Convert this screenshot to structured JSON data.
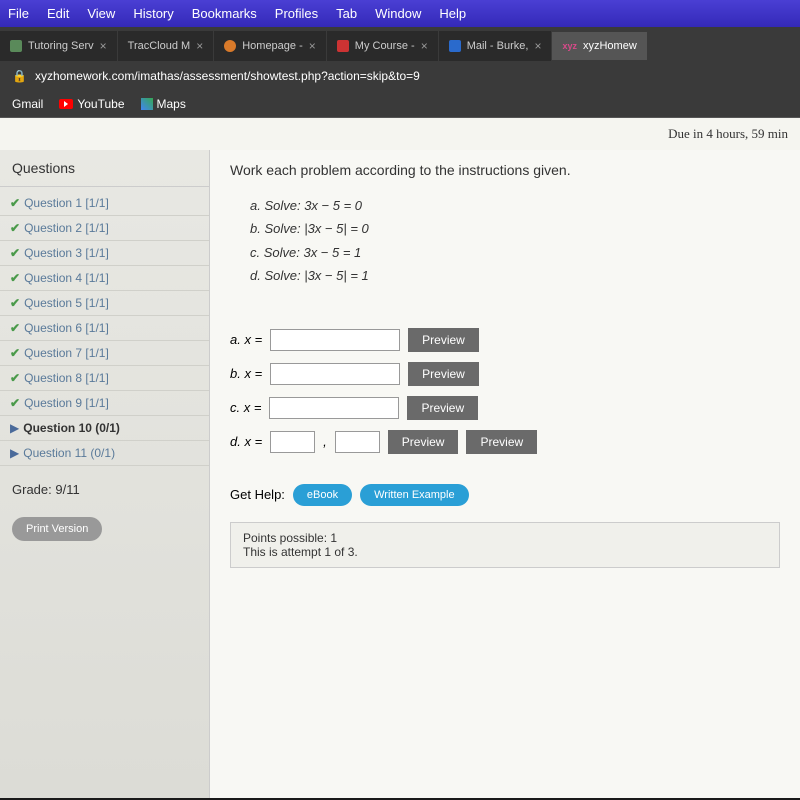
{
  "menu": [
    "File",
    "Edit",
    "View",
    "History",
    "Bookmarks",
    "Profiles",
    "Tab",
    "Window",
    "Help"
  ],
  "tabs": [
    {
      "label": "Tutoring Serv",
      "active": false
    },
    {
      "label": "TracCloud M",
      "active": false
    },
    {
      "label": "Homepage -",
      "active": false
    },
    {
      "label": "My Course -",
      "active": false
    },
    {
      "label": "Mail - Burke,",
      "active": false
    },
    {
      "label": "xyzHomew",
      "active": true,
      "brand": "xyz"
    }
  ],
  "url": "xyzhomework.com/imathas/assessment/showtest.php?action=skip&to=9",
  "bookmarks": {
    "gmail": "Gmail",
    "youtube": "YouTube",
    "maps": "Maps"
  },
  "due": "Due in 4 hours, 59 min",
  "sidebar": {
    "header": "Questions",
    "items": [
      {
        "label": "Question 1 [1/1]",
        "status": "check"
      },
      {
        "label": "Question 2 [1/1]",
        "status": "check"
      },
      {
        "label": "Question 3 [1/1]",
        "status": "check"
      },
      {
        "label": "Question 4 [1/1]",
        "status": "check"
      },
      {
        "label": "Question 5 [1/1]",
        "status": "check"
      },
      {
        "label": "Question 6 [1/1]",
        "status": "check"
      },
      {
        "label": "Question 7 [1/1]",
        "status": "check"
      },
      {
        "label": "Question 8 [1/1]",
        "status": "check"
      },
      {
        "label": "Question 9 [1/1]",
        "status": "check"
      },
      {
        "label": "Question 10 (0/1)",
        "status": "arrow",
        "current": true
      },
      {
        "label": "Question 11 (0/1)",
        "status": "arrow"
      }
    ],
    "grade": "Grade: 9/11",
    "print": "Print Version"
  },
  "work": {
    "instructions": "Work each problem according to the instructions given.",
    "problems": [
      "a.  Solve: 3x − 5 = 0",
      "b.  Solve: |3x − 5| = 0",
      "c.  Solve: 3x − 5 = 1",
      "d.  Solve: |3x − 5| = 1"
    ],
    "answers": [
      {
        "label": "a.  x =",
        "inputs": 1,
        "previews": 1
      },
      {
        "label": "b.  x =",
        "inputs": 1,
        "previews": 1
      },
      {
        "label": "c.  x =",
        "inputs": 1,
        "previews": 1
      },
      {
        "label": "d.  x =",
        "inputs": 2,
        "previews": 2
      }
    ],
    "preview_label": "Preview",
    "help_label": "Get Help:",
    "ebook": "eBook",
    "written": "Written Example",
    "points": "Points possible: 1",
    "attempt": "This is attempt 1 of 3."
  }
}
